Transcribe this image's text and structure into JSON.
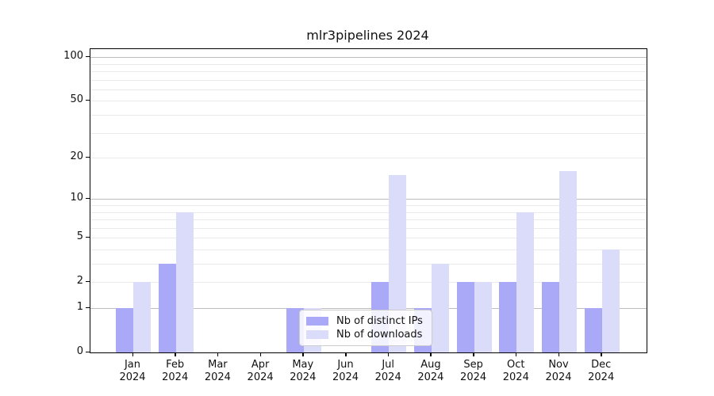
{
  "chart_data": {
    "type": "bar",
    "title": "mlr3pipelines 2024",
    "categories": [
      "Jan",
      "Feb",
      "Mar",
      "Apr",
      "May",
      "Jun",
      "Jul",
      "Aug",
      "Sep",
      "Oct",
      "Nov",
      "Dec"
    ],
    "category_year": "2024",
    "series": [
      {
        "name": "Nb of distinct IPs",
        "color": "#a9a9f7",
        "values": [
          1,
          3,
          0,
          0,
          1,
          0,
          2,
          1,
          2,
          2,
          2,
          1
        ]
      },
      {
        "name": "Nb of downloads",
        "color": "#dbdbfa",
        "values": [
          2,
          8,
          0,
          0,
          1,
          0,
          15,
          3,
          2,
          8,
          16,
          4
        ]
      }
    ],
    "xlabel": "",
    "ylabel": "",
    "y_axis": {
      "scale": "log10(1+x)",
      "tick_values": [
        100,
        50,
        20,
        10,
        5,
        2,
        1,
        0
      ],
      "tick_labels": [
        "100",
        "50",
        "20",
        "10",
        "5",
        "2",
        "1",
        "0"
      ],
      "minor_gridline_values": [
        2,
        3,
        4,
        5,
        6,
        7,
        8,
        9,
        20,
        30,
        40,
        50,
        60,
        70,
        80,
        90
      ],
      "major_gridline_values": [
        1,
        10,
        100
      ],
      "ylim": [
        0,
        112
      ]
    },
    "grid": "on",
    "legend_position": "inside-bottom-center",
    "colors": {
      "major_grid": "#bdbdbd",
      "minor_grid": "#eaeaea",
      "spine": "#000000",
      "text": "#111111",
      "background": "#ffffff"
    }
  }
}
